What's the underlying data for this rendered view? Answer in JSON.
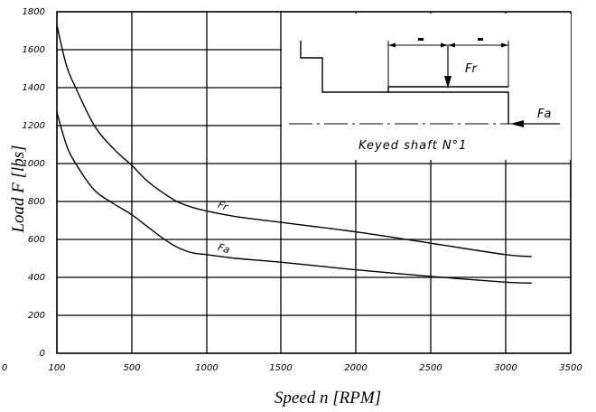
{
  "chart_data": {
    "type": "line",
    "title": "",
    "xlabel": "Speed n [RPM]",
    "ylabel": "Load F [lbs]",
    "xlim": [
      100,
      3500
    ],
    "ylim": [
      0,
      1800
    ],
    "grid": true,
    "x_ticks": [
      "100",
      "500",
      "1000",
      "1500",
      "2000",
      "2500",
      "3000",
      "3500"
    ],
    "x_tick_values": [
      100,
      500,
      1000,
      1500,
      2000,
      2500,
      3000,
      3500
    ],
    "x_stray_tick": "0",
    "y_ticks": [
      "0",
      "200",
      "400",
      "600",
      "800",
      "1000",
      "1200",
      "1400",
      "1600",
      "1800"
    ],
    "y_tick_values": [
      0,
      200,
      400,
      600,
      800,
      1000,
      1200,
      1400,
      1600,
      1800
    ],
    "series": [
      {
        "name": "Fr",
        "x": [
          100,
          150,
          200,
          300,
          400,
          500,
          600,
          700,
          800,
          900,
          1000,
          1200,
          1500,
          2000,
          2500,
          3000,
          3200
        ],
        "y": [
          1730,
          1520,
          1400,
          1200,
          1080,
          990,
          910,
          850,
          800,
          770,
          750,
          720,
          690,
          640,
          580,
          520,
          510
        ]
      },
      {
        "name": "Fa",
        "x": [
          100,
          150,
          200,
          300,
          400,
          500,
          600,
          700,
          800,
          900,
          1000,
          1200,
          1500,
          2000,
          2500,
          3000,
          3200
        ],
        "y": [
          1270,
          1100,
          1000,
          860,
          790,
          730,
          670,
          610,
          560,
          530,
          520,
          500,
          480,
          440,
          405,
          375,
          370
        ]
      }
    ],
    "annotations": {
      "inset_label": "Keyed shaft N°1",
      "radial_force": "Fr",
      "axial_force": "Fa"
    }
  }
}
